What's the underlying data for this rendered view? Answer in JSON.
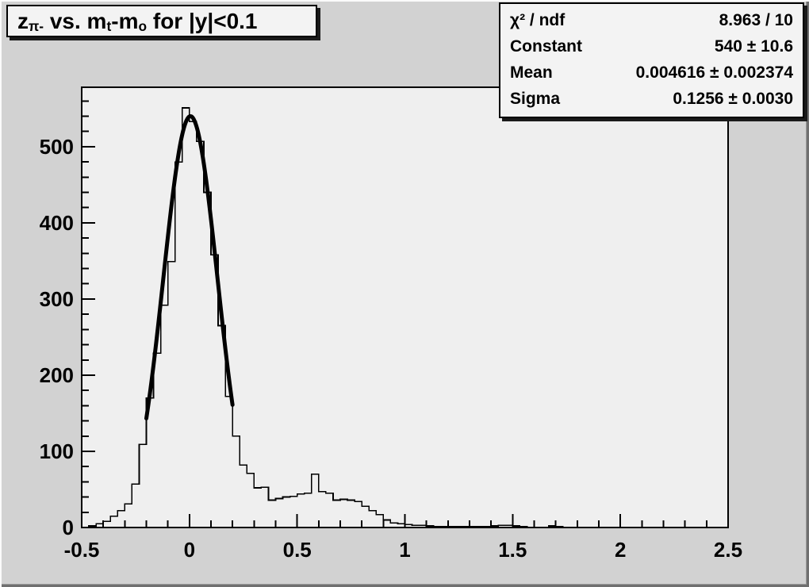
{
  "title_box": {
    "t1": "z",
    "s1": "π-",
    "t2": " vs. m",
    "s2": "t",
    "t3": "-m",
    "s3": "o",
    "t4": " for |y|<0.1"
  },
  "stats_box": {
    "rows": [
      {
        "label": "χ² / ndf",
        "value": "8.963 / 10"
      },
      {
        "label": "Constant",
        "value": "540 ± 10.6"
      },
      {
        "label": "Mean",
        "value": "0.004616 ± 0.002374"
      },
      {
        "label": "Sigma",
        "value": "0.1256 ± 0.0030"
      }
    ]
  },
  "colors": {
    "canvas_bg": "#d2d2d2",
    "frame_bg": "#efefef",
    "pave_bg": "#f3f3f3",
    "line": "#000000",
    "bevel_light": "#fbfbfb",
    "bevel_dark": "#6f6f6f",
    "shadow": "#1a1a1a"
  },
  "chart_data": {
    "type": "bar",
    "variant": "root-step-histogram",
    "title": "z_{π-} vs. m_{t}-m_{o} for |y|<0.1",
    "xlabel": "",
    "ylabel": "",
    "grid": false,
    "legend_position": "none",
    "x_range": [
      -0.5,
      2.5
    ],
    "y_range": [
      0,
      578
    ],
    "x_major_ticks": [
      -0.5,
      0,
      0.5,
      1,
      1.5,
      2,
      2.5
    ],
    "x_major_tick_labels": [
      "-0.5",
      "0",
      "0.5",
      "1",
      "1.5",
      "2",
      "2.5"
    ],
    "x_minor_step": 0.1,
    "y_major_ticks": [
      0,
      100,
      200,
      300,
      400,
      500
    ],
    "y_major_tick_labels": [
      "0",
      "100",
      "200",
      "300",
      "400",
      "500"
    ],
    "y_minor_step": 20,
    "bins": {
      "start": -0.5,
      "width": 0.0333333,
      "counts": [
        0,
        2,
        5,
        8,
        15,
        22,
        31,
        57,
        109,
        170,
        229,
        292,
        349,
        480,
        551,
        533,
        507,
        440,
        358,
        265,
        172,
        120,
        82,
        71,
        52,
        53,
        36,
        38,
        40,
        41,
        44,
        45,
        70,
        47,
        45,
        36,
        37,
        36,
        34,
        28,
        22,
        17,
        10,
        6,
        5,
        4,
        3,
        3,
        2,
        1,
        1,
        1,
        1,
        1,
        1,
        1,
        1,
        2,
        3,
        3,
        2,
        1,
        0,
        0,
        0,
        2,
        1,
        0,
        0,
        0,
        0,
        0,
        0,
        0,
        0,
        0,
        0,
        0,
        0,
        0,
        0,
        0,
        0,
        0,
        0,
        0,
        0,
        0,
        0,
        0
      ]
    },
    "fit": {
      "model": "gaussian",
      "constant": 540,
      "mean": 0.004616,
      "sigma": 0.1256,
      "draw_range": [
        -0.2,
        0.2
      ]
    }
  }
}
